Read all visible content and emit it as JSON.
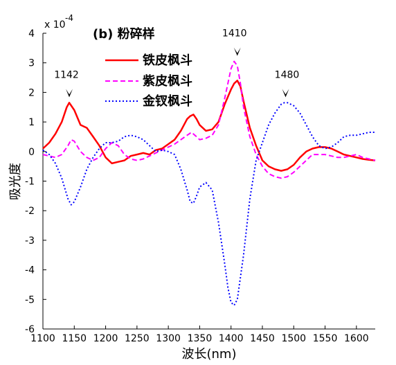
{
  "chart_data": {
    "type": "line",
    "panel_label": "(b) 粉碎样",
    "xlabel": "波长(nm)",
    "ylabel": "吸光度",
    "y_exponent_label": "x 10",
    "y_exponent_power": "-4",
    "xlim": [
      1100,
      1630
    ],
    "ylim": [
      -6,
      4
    ],
    "x_ticks": [
      1100,
      1150,
      1200,
      1250,
      1300,
      1350,
      1400,
      1450,
      1500,
      1550,
      1600
    ],
    "x_tick_labels": [
      "1100",
      "1150",
      "1200",
      "1250",
      "1300",
      "1350",
      "1400",
      "1450",
      "1500",
      "1550",
      "1600"
    ],
    "y_ticks": [
      -6,
      -5,
      -4,
      -3,
      -2,
      -1,
      0,
      1,
      2,
      3,
      4
    ],
    "y_tick_labels": [
      "-6",
      "-5",
      "-4",
      "-3",
      "-2",
      "-1",
      "0",
      "1",
      "2",
      "3",
      "4"
    ],
    "grid": false,
    "legend_position": "top-left",
    "series": [
      {
        "name": "铁皮枫斗",
        "color": "#ff0000",
        "style": "solid",
        "x": [
          1100,
          1110,
          1120,
          1130,
          1138,
          1142,
          1150,
          1160,
          1170,
          1180,
          1190,
          1200,
          1210,
          1220,
          1230,
          1240,
          1250,
          1260,
          1270,
          1280,
          1290,
          1300,
          1310,
          1320,
          1330,
          1335,
          1340,
          1345,
          1350,
          1360,
          1370,
          1380,
          1390,
          1400,
          1405,
          1410,
          1415,
          1420,
          1430,
          1440,
          1450,
          1460,
          1470,
          1480,
          1490,
          1500,
          1510,
          1520,
          1530,
          1540,
          1550,
          1560,
          1570,
          1580,
          1590,
          1600,
          1610,
          1620,
          1630
        ],
        "y": [
          0.1,
          0.3,
          0.6,
          1.0,
          1.5,
          1.65,
          1.4,
          0.9,
          0.8,
          0.5,
          0.2,
          -0.2,
          -0.4,
          -0.35,
          -0.3,
          -0.15,
          -0.1,
          -0.05,
          -0.1,
          0.05,
          0.1,
          0.25,
          0.4,
          0.7,
          1.1,
          1.2,
          1.25,
          1.1,
          0.9,
          0.7,
          0.75,
          1.0,
          1.6,
          2.1,
          2.3,
          2.4,
          2.2,
          1.7,
          0.8,
          0.2,
          -0.3,
          -0.5,
          -0.6,
          -0.65,
          -0.6,
          -0.45,
          -0.2,
          0.0,
          0.1,
          0.15,
          0.15,
          0.1,
          0.0,
          -0.1,
          -0.15,
          -0.2,
          -0.25,
          -0.28,
          -0.3
        ]
      },
      {
        "name": "紫皮枫斗",
        "color": "#ff00ff",
        "style": "dashed",
        "x": [
          1100,
          1110,
          1120,
          1130,
          1140,
          1145,
          1150,
          1160,
          1170,
          1180,
          1190,
          1200,
          1210,
          1220,
          1230,
          1240,
          1250,
          1260,
          1270,
          1280,
          1290,
          1300,
          1310,
          1320,
          1330,
          1337,
          1345,
          1350,
          1360,
          1370,
          1380,
          1390,
          1400,
          1405,
          1410,
          1415,
          1420,
          1430,
          1440,
          1450,
          1460,
          1470,
          1480,
          1490,
          1500,
          1510,
          1520,
          1530,
          1540,
          1550,
          1560,
          1570,
          1580,
          1590,
          1600,
          1610,
          1620,
          1630
        ],
        "y": [
          -0.1,
          -0.15,
          -0.2,
          -0.1,
          0.2,
          0.4,
          0.35,
          0.0,
          -0.2,
          -0.3,
          -0.2,
          0.1,
          0.3,
          0.2,
          -0.1,
          -0.25,
          -0.3,
          -0.25,
          -0.15,
          -0.05,
          0.05,
          0.15,
          0.25,
          0.4,
          0.55,
          0.65,
          0.5,
          0.4,
          0.45,
          0.55,
          0.9,
          1.8,
          2.8,
          3.05,
          2.9,
          2.3,
          1.5,
          0.5,
          -0.1,
          -0.5,
          -0.75,
          -0.85,
          -0.9,
          -0.85,
          -0.7,
          -0.5,
          -0.3,
          -0.1,
          -0.1,
          -0.1,
          -0.15,
          -0.2,
          -0.2,
          -0.15,
          -0.1,
          -0.2,
          -0.25,
          -0.3
        ]
      },
      {
        "name": "金钗枫斗",
        "color": "#0000ff",
        "style": "dotted",
        "x": [
          1100,
          1110,
          1120,
          1130,
          1140,
          1145,
          1150,
          1160,
          1170,
          1180,
          1190,
          1200,
          1210,
          1220,
          1230,
          1240,
          1250,
          1260,
          1270,
          1280,
          1290,
          1300,
          1310,
          1320,
          1330,
          1335,
          1340,
          1345,
          1350,
          1360,
          1370,
          1380,
          1390,
          1395,
          1400,
          1405,
          1410,
          1420,
          1430,
          1440,
          1450,
          1460,
          1470,
          1480,
          1485,
          1490,
          1500,
          1510,
          1520,
          1530,
          1540,
          1550,
          1560,
          1570,
          1580,
          1590,
          1600,
          1610,
          1620,
          1630
        ],
        "y": [
          0.05,
          -0.1,
          -0.4,
          -0.9,
          -1.6,
          -1.8,
          -1.7,
          -1.2,
          -0.6,
          -0.2,
          0.1,
          0.3,
          0.3,
          0.35,
          0.5,
          0.55,
          0.5,
          0.4,
          0.2,
          0.0,
          0.05,
          0.0,
          -0.1,
          -0.6,
          -1.3,
          -1.7,
          -1.75,
          -1.5,
          -1.2,
          -1.05,
          -1.3,
          -2.4,
          -3.8,
          -4.6,
          -5.1,
          -5.2,
          -5.0,
          -3.5,
          -1.6,
          -0.3,
          0.3,
          0.9,
          1.3,
          1.6,
          1.65,
          1.65,
          1.55,
          1.3,
          0.9,
          0.5,
          0.2,
          0.1,
          0.15,
          0.3,
          0.5,
          0.55,
          0.55,
          0.6,
          0.65,
          0.65
        ]
      }
    ],
    "annotations": [
      {
        "label": "1142",
        "x": 1142,
        "arrow_y": 1.65
      },
      {
        "label": "1410",
        "x": 1410,
        "arrow_y": 3.05
      },
      {
        "label": "1480",
        "x": 1487,
        "arrow_y": 1.65
      }
    ]
  }
}
